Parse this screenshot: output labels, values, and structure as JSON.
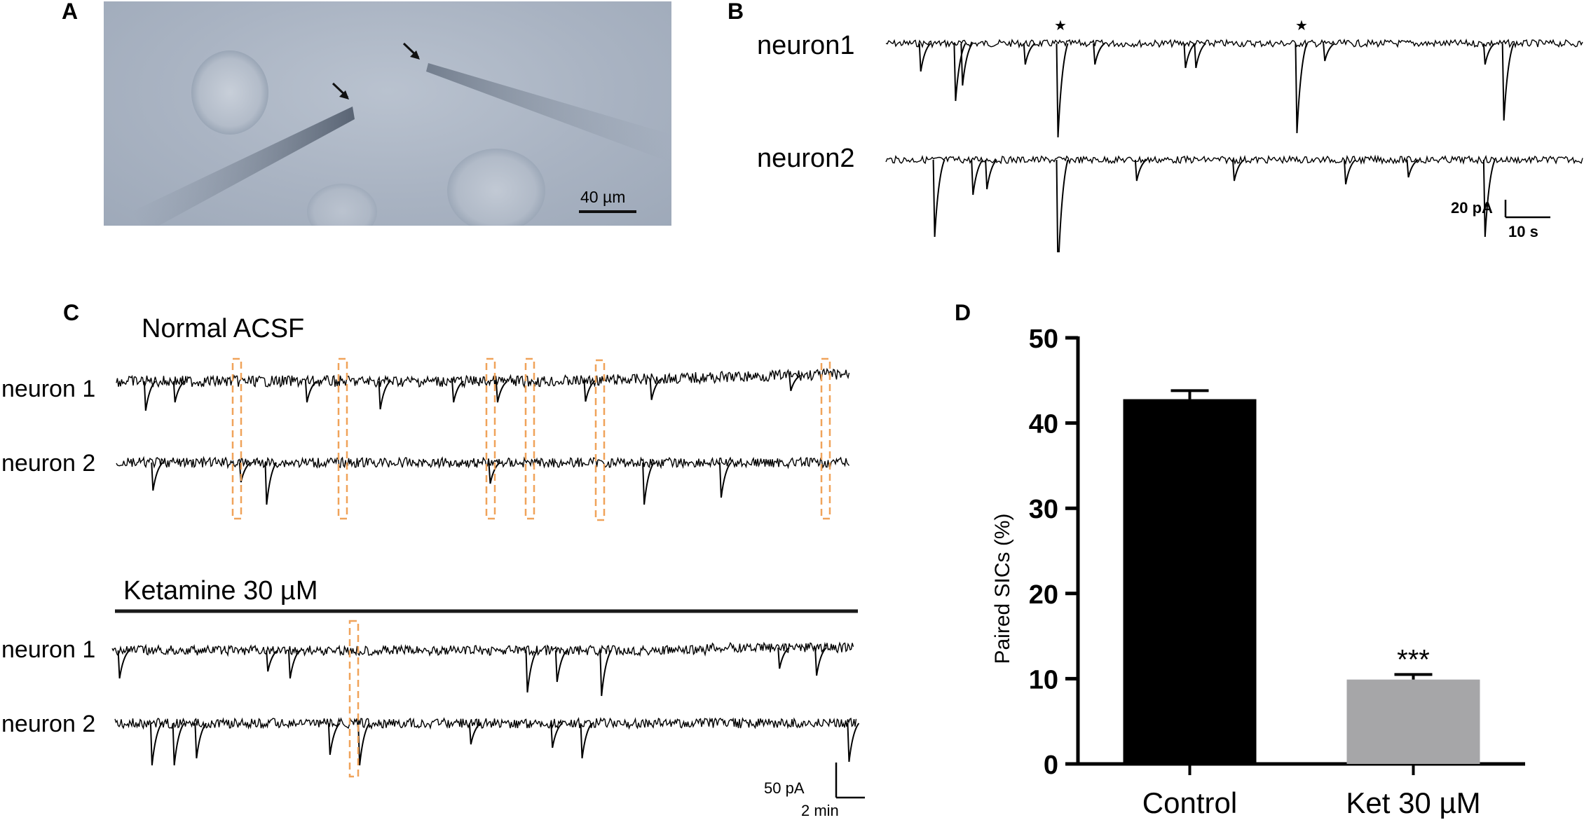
{
  "panels": {
    "A": {
      "letter": "A",
      "scale_bar_label": "40 µm"
    },
    "B": {
      "letter": "B",
      "traces": [
        "neuron1",
        "neuron2"
      ],
      "scale_current": "20 pA",
      "scale_time": "10 s",
      "paired_event_marker": "★"
    },
    "C": {
      "letter": "C",
      "conditions": [
        {
          "label": "Normal ACSF",
          "traces": [
            "neuron 1",
            "neuron 2"
          ]
        },
        {
          "label": "Ketamine 30 µM",
          "traces": [
            "neuron 1",
            "neuron 2"
          ]
        }
      ],
      "scale_current": "50 pA",
      "scale_time": "2 min",
      "highlight_color": "#f0a35a"
    },
    "D": {
      "letter": "D"
    }
  },
  "chart_data": {
    "type": "bar",
    "categories": [
      "Control",
      "Ket 30 µM"
    ],
    "values": [
      42.8,
      9.9
    ],
    "errors": [
      1.0,
      0.6
    ],
    "colors": [
      "#000000",
      "#a6a6a8"
    ],
    "ylabel": "Paired SICs (%)",
    "xlabel": "",
    "ylim": [
      0,
      50
    ],
    "yticks": [
      "0",
      "10",
      "20",
      "30",
      "40",
      "50"
    ],
    "significance": [
      "",
      "***"
    ]
  }
}
